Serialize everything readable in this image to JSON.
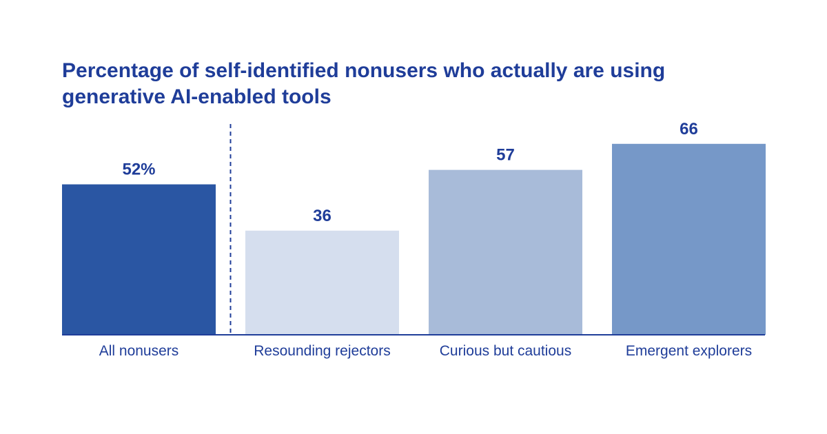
{
  "chart_data": {
    "type": "bar",
    "title_lines": [
      "Percentage of self-identified nonusers who actually are using",
      "generative AI-enabled tools"
    ],
    "categories": [
      "All nonusers",
      "Resounding rejectors",
      "Curious but cautious",
      "Emergent explorers"
    ],
    "values": [
      52,
      36,
      57,
      66
    ],
    "value_labels": [
      "52%",
      "36",
      "57",
      "66"
    ],
    "colors": [
      "#2a56a3",
      "#d5deee",
      "#a8bbd9",
      "#7698c8"
    ],
    "axis_color": "#1f3d99",
    "divider_after_index": 0,
    "ylim": [
      0,
      100
    ],
    "grid": false,
    "legend": "none"
  }
}
